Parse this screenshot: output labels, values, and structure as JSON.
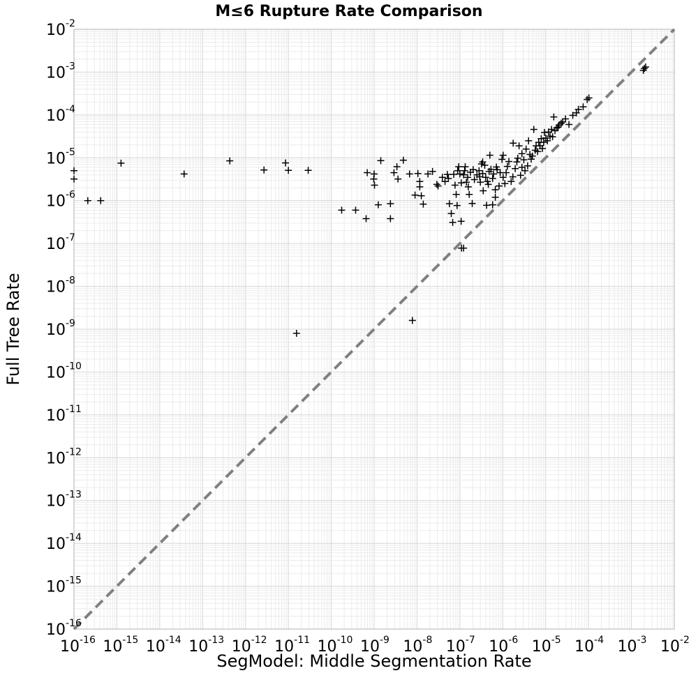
{
  "chart_data": {
    "type": "scatter",
    "title": "M≤6 Rupture Rate Comparison",
    "xlabel": "SegModel: Middle Segmentation Rate",
    "ylabel": "Full Tree Rate",
    "x_scale": "log",
    "y_scale": "log",
    "xlim": [
      1e-16,
      0.01
    ],
    "ylim": [
      1e-16,
      0.01
    ],
    "x_ticks": [
      {
        "base": "10",
        "exp": "-16"
      },
      {
        "base": "10",
        "exp": "-15"
      },
      {
        "base": "10",
        "exp": "-14"
      },
      {
        "base": "10",
        "exp": "-13"
      },
      {
        "base": "10",
        "exp": "-12"
      },
      {
        "base": "10",
        "exp": "-11"
      },
      {
        "base": "10",
        "exp": "-10"
      },
      {
        "base": "10",
        "exp": "-9"
      },
      {
        "base": "10",
        "exp": "-8"
      },
      {
        "base": "10",
        "exp": "-7"
      },
      {
        "base": "10",
        "exp": "-6"
      },
      {
        "base": "10",
        "exp": "-5"
      },
      {
        "base": "10",
        "exp": "-4"
      },
      {
        "base": "10",
        "exp": "-3"
      },
      {
        "base": "10",
        "exp": "-2"
      }
    ],
    "y_ticks": [
      {
        "base": "10",
        "exp": "-16"
      },
      {
        "base": "10",
        "exp": "-15"
      },
      {
        "base": "10",
        "exp": "-14"
      },
      {
        "base": "10",
        "exp": "-13"
      },
      {
        "base": "10",
        "exp": "-12"
      },
      {
        "base": "10",
        "exp": "-11"
      },
      {
        "base": "10",
        "exp": "-10"
      },
      {
        "base": "10",
        "exp": "-9"
      },
      {
        "base": "10",
        "exp": "-8"
      },
      {
        "base": "10",
        "exp": "-7"
      },
      {
        "base": "10",
        "exp": "-6"
      },
      {
        "base": "10",
        "exp": "-5"
      },
      {
        "base": "10",
        "exp": "-4"
      },
      {
        "base": "10",
        "exp": "-3"
      },
      {
        "base": "10",
        "exp": "-2"
      }
    ],
    "grid": true,
    "reference_line": {
      "style": "dashed",
      "color": "#808080",
      "description": "y = x"
    },
    "marker": "+",
    "marker_color": "#000000",
    "series": [
      {
        "points": [
          [
            1e-16,
            5e-06
          ],
          [
            1e-16,
            3.2e-06
          ],
          [
            2.1e-16,
            1e-06
          ],
          [
            4.2e-16,
            1e-06
          ],
          [
            1.25e-15,
            7.5e-06
          ],
          [
            3.7e-14,
            4.2e-06
          ],
          [
            4.3e-13,
            8.5e-06
          ],
          [
            2.7e-12,
            5.2e-06
          ],
          [
            8.6e-12,
            7.6e-06
          ],
          [
            1e-11,
            5.1e-06
          ],
          [
            2.9e-11,
            5.1e-06
          ],
          [
            1.55e-11,
            8e-10
          ],
          [
            1.75e-10,
            6e-07
          ],
          [
            3.7e-10,
            6e-07
          ],
          [
            6.5e-10,
            3.8e-07
          ],
          [
            6.9e-10,
            4.5e-06
          ],
          [
            1e-09,
            4.2e-06
          ],
          [
            9.8e-10,
            3.2e-06
          ],
          [
            1.02e-09,
            2.3e-06
          ],
          [
            1.25e-09,
            8e-07
          ],
          [
            1.43e-09,
            8.6e-06
          ],
          [
            2.4e-09,
            8.5e-07
          ],
          [
            2.4e-09,
            3.8e-07
          ],
          [
            2.9e-09,
            4.5e-06
          ],
          [
            3.4e-09,
            6.2e-06
          ],
          [
            3.6e-09,
            3.2e-06
          ],
          [
            4.8e-09,
            8.8e-06
          ],
          [
            6.7e-09,
            4.2e-06
          ],
          [
            7.8e-09,
            1.6e-09
          ],
          [
            9e-09,
            1.35e-06
          ],
          [
            1.05e-08,
            4.3e-06
          ],
          [
            1.16e-08,
            2.8e-06
          ],
          [
            1.16e-08,
            2.1e-06
          ],
          [
            1.26e-08,
            1.3e-06
          ],
          [
            1.4e-08,
            8.3e-07
          ],
          [
            1.8e-08,
            4.2e-06
          ],
          [
            2.3e-08,
            4.8e-06
          ],
          [
            2.9e-08,
            2.4e-06
          ],
          [
            3.1e-08,
            2.2e-06
          ],
          [
            3.9e-08,
            3.5e-06
          ],
          [
            4.5e-08,
            2.8e-06
          ],
          [
            5.1e-08,
            4.1e-06
          ],
          [
            5.4e-08,
            3.3e-06
          ],
          [
            5.7e-08,
            8.5e-07
          ],
          [
            6.3e-08,
            5e-07
          ],
          [
            6.8e-08,
            3.1e-07
          ],
          [
            7.2e-08,
            4.1e-06
          ],
          [
            7.7e-08,
            2.3e-06
          ],
          [
            8.2e-08,
            1.4e-06
          ],
          [
            8.6e-08,
            7.7e-07
          ],
          [
            8.9e-08,
            5e-06
          ],
          [
            9.4e-08,
            6.2e-06
          ],
          [
            1e-07,
            4.2e-06
          ],
          [
            1.07e-07,
            3.3e-07
          ],
          [
            1.08e-07,
            2.6e-06
          ],
          [
            1.09e-07,
            7.8e-08
          ],
          [
            1.22e-07,
            7.8e-08
          ],
          [
            1.22e-07,
            4e-06
          ],
          [
            1.29e-07,
            5e-06
          ],
          [
            1.33e-07,
            6.2e-06
          ],
          [
            1.42e-07,
            2.7e-06
          ],
          [
            1.52e-07,
            3.5e-06
          ],
          [
            1.57e-07,
            2.1e-06
          ],
          [
            1.65e-07,
            1.4e-06
          ],
          [
            1.76e-07,
            4.6e-06
          ],
          [
            1.94e-07,
            8.6e-07
          ],
          [
            2.04e-07,
            5.3e-06
          ],
          [
            2.18e-07,
            3.1e-06
          ],
          [
            2.5e-07,
            4e-06
          ],
          [
            2.8e-07,
            5e-06
          ],
          [
            2.9e-07,
            3.6e-06
          ],
          [
            3e-07,
            2.7e-06
          ],
          [
            3.2e-07,
            7.2e-06
          ],
          [
            3.4e-07,
            8e-06
          ],
          [
            3.4e-07,
            4.3e-06
          ],
          [
            3.5e-07,
            1.7e-06
          ],
          [
            3.8e-07,
            6.7e-06
          ],
          [
            4e-07,
            3.5e-06
          ],
          [
            4.2e-07,
            7.8e-07
          ],
          [
            4.4e-07,
            2.8e-06
          ],
          [
            4.6e-07,
            2.4e-06
          ],
          [
            4.8e-07,
            4.8e-06
          ],
          [
            5e-07,
            1.15e-05
          ],
          [
            5.3e-07,
            5.4e-06
          ],
          [
            5.8e-07,
            3.3e-06
          ],
          [
            5.8e-07,
            8e-07
          ],
          [
            6.1e-07,
            4.2e-06
          ],
          [
            6.7e-07,
            1.2e-06
          ],
          [
            6.7e-07,
            1.8e-06
          ],
          [
            7.1e-07,
            6.1e-06
          ],
          [
            7.4e-07,
            5.3e-06
          ],
          [
            8.2e-07,
            2.2e-06
          ],
          [
            8.7e-07,
            4.5e-06
          ],
          [
            9.6e-07,
            9.2e-06
          ],
          [
            1.02e-06,
            1.15e-05
          ],
          [
            1.02e-06,
            3.5e-06
          ],
          [
            1.12e-06,
            2.5e-06
          ],
          [
            1.2e-06,
            4.5e-06
          ],
          [
            1.28e-06,
            6.3e-06
          ],
          [
            1.39e-06,
            8.2e-06
          ],
          [
            1.57e-06,
            2.8e-06
          ],
          [
            1.72e-06,
            3.6e-06
          ],
          [
            1.75e-06,
            2.2e-05
          ],
          [
            1.95e-06,
            5.6e-06
          ],
          [
            2.13e-06,
            8e-06
          ],
          [
            2.24e-06,
            9.8e-06
          ],
          [
            2.4e-06,
            1.9e-05
          ],
          [
            2.6e-06,
            3.9e-06
          ],
          [
            2.8e-06,
            1.25e-05
          ],
          [
            2.8e-06,
            6e-06
          ],
          [
            3.1e-06,
            9e-06
          ],
          [
            3.3e-06,
            5e-06
          ],
          [
            3.5e-06,
            1.6e-05
          ],
          [
            3.8e-06,
            6.5e-06
          ],
          [
            4e-06,
            2.5e-05
          ],
          [
            4.3e-06,
            1.2e-05
          ],
          [
            4.6e-06,
            9.3e-06
          ],
          [
            4.9e-06,
            1.1e-05
          ],
          [
            5.3e-06,
            4.6e-05
          ],
          [
            5.7e-06,
            1.5e-05
          ],
          [
            6e-06,
            1.9e-05
          ],
          [
            6.5e-06,
            1.4e-05
          ],
          [
            6.9e-06,
            2.3e-05
          ],
          [
            7.4e-06,
            1.9e-05
          ],
          [
            7.9e-06,
            2.8e-05
          ],
          [
            8.4e-06,
            1.65e-05
          ],
          [
            9e-06,
            2.3e-05
          ],
          [
            9.4e-06,
            3.9e-05
          ],
          [
            1.01e-05,
            2.9e-05
          ],
          [
            1.1e-05,
            2.5e-05
          ],
          [
            1.17e-05,
            4e-05
          ],
          [
            1.27e-05,
            3.2e-05
          ],
          [
            1.37e-05,
            4.6e-05
          ],
          [
            1.45e-05,
            3.1e-05
          ],
          [
            1.55e-05,
            9e-05
          ],
          [
            1.65e-05,
            4.3e-05
          ],
          [
            1.82e-05,
            5e-05
          ],
          [
            1.95e-05,
            5.2e-05
          ],
          [
            2.05e-05,
            5.8e-05
          ],
          [
            2.3e-05,
            6.4e-05
          ],
          [
            2.5e-05,
            6.9e-05
          ],
          [
            2.9e-05,
            8.1e-05
          ],
          [
            3.5e-05,
            6e-05
          ],
          [
            4.3e-05,
            9.8e-05
          ],
          [
            5.2e-05,
            0.000112
          ],
          [
            5.8e-05,
            0.000135
          ],
          [
            7.5e-05,
            0.000155
          ],
          [
            9.3e-05,
            0.00023
          ],
          [
            0.000102,
            0.00025
          ],
          [
            0.0019,
            0.0011
          ],
          [
            0.002,
            0.00122
          ],
          [
            0.00215,
            0.00132
          ]
        ]
      }
    ]
  }
}
